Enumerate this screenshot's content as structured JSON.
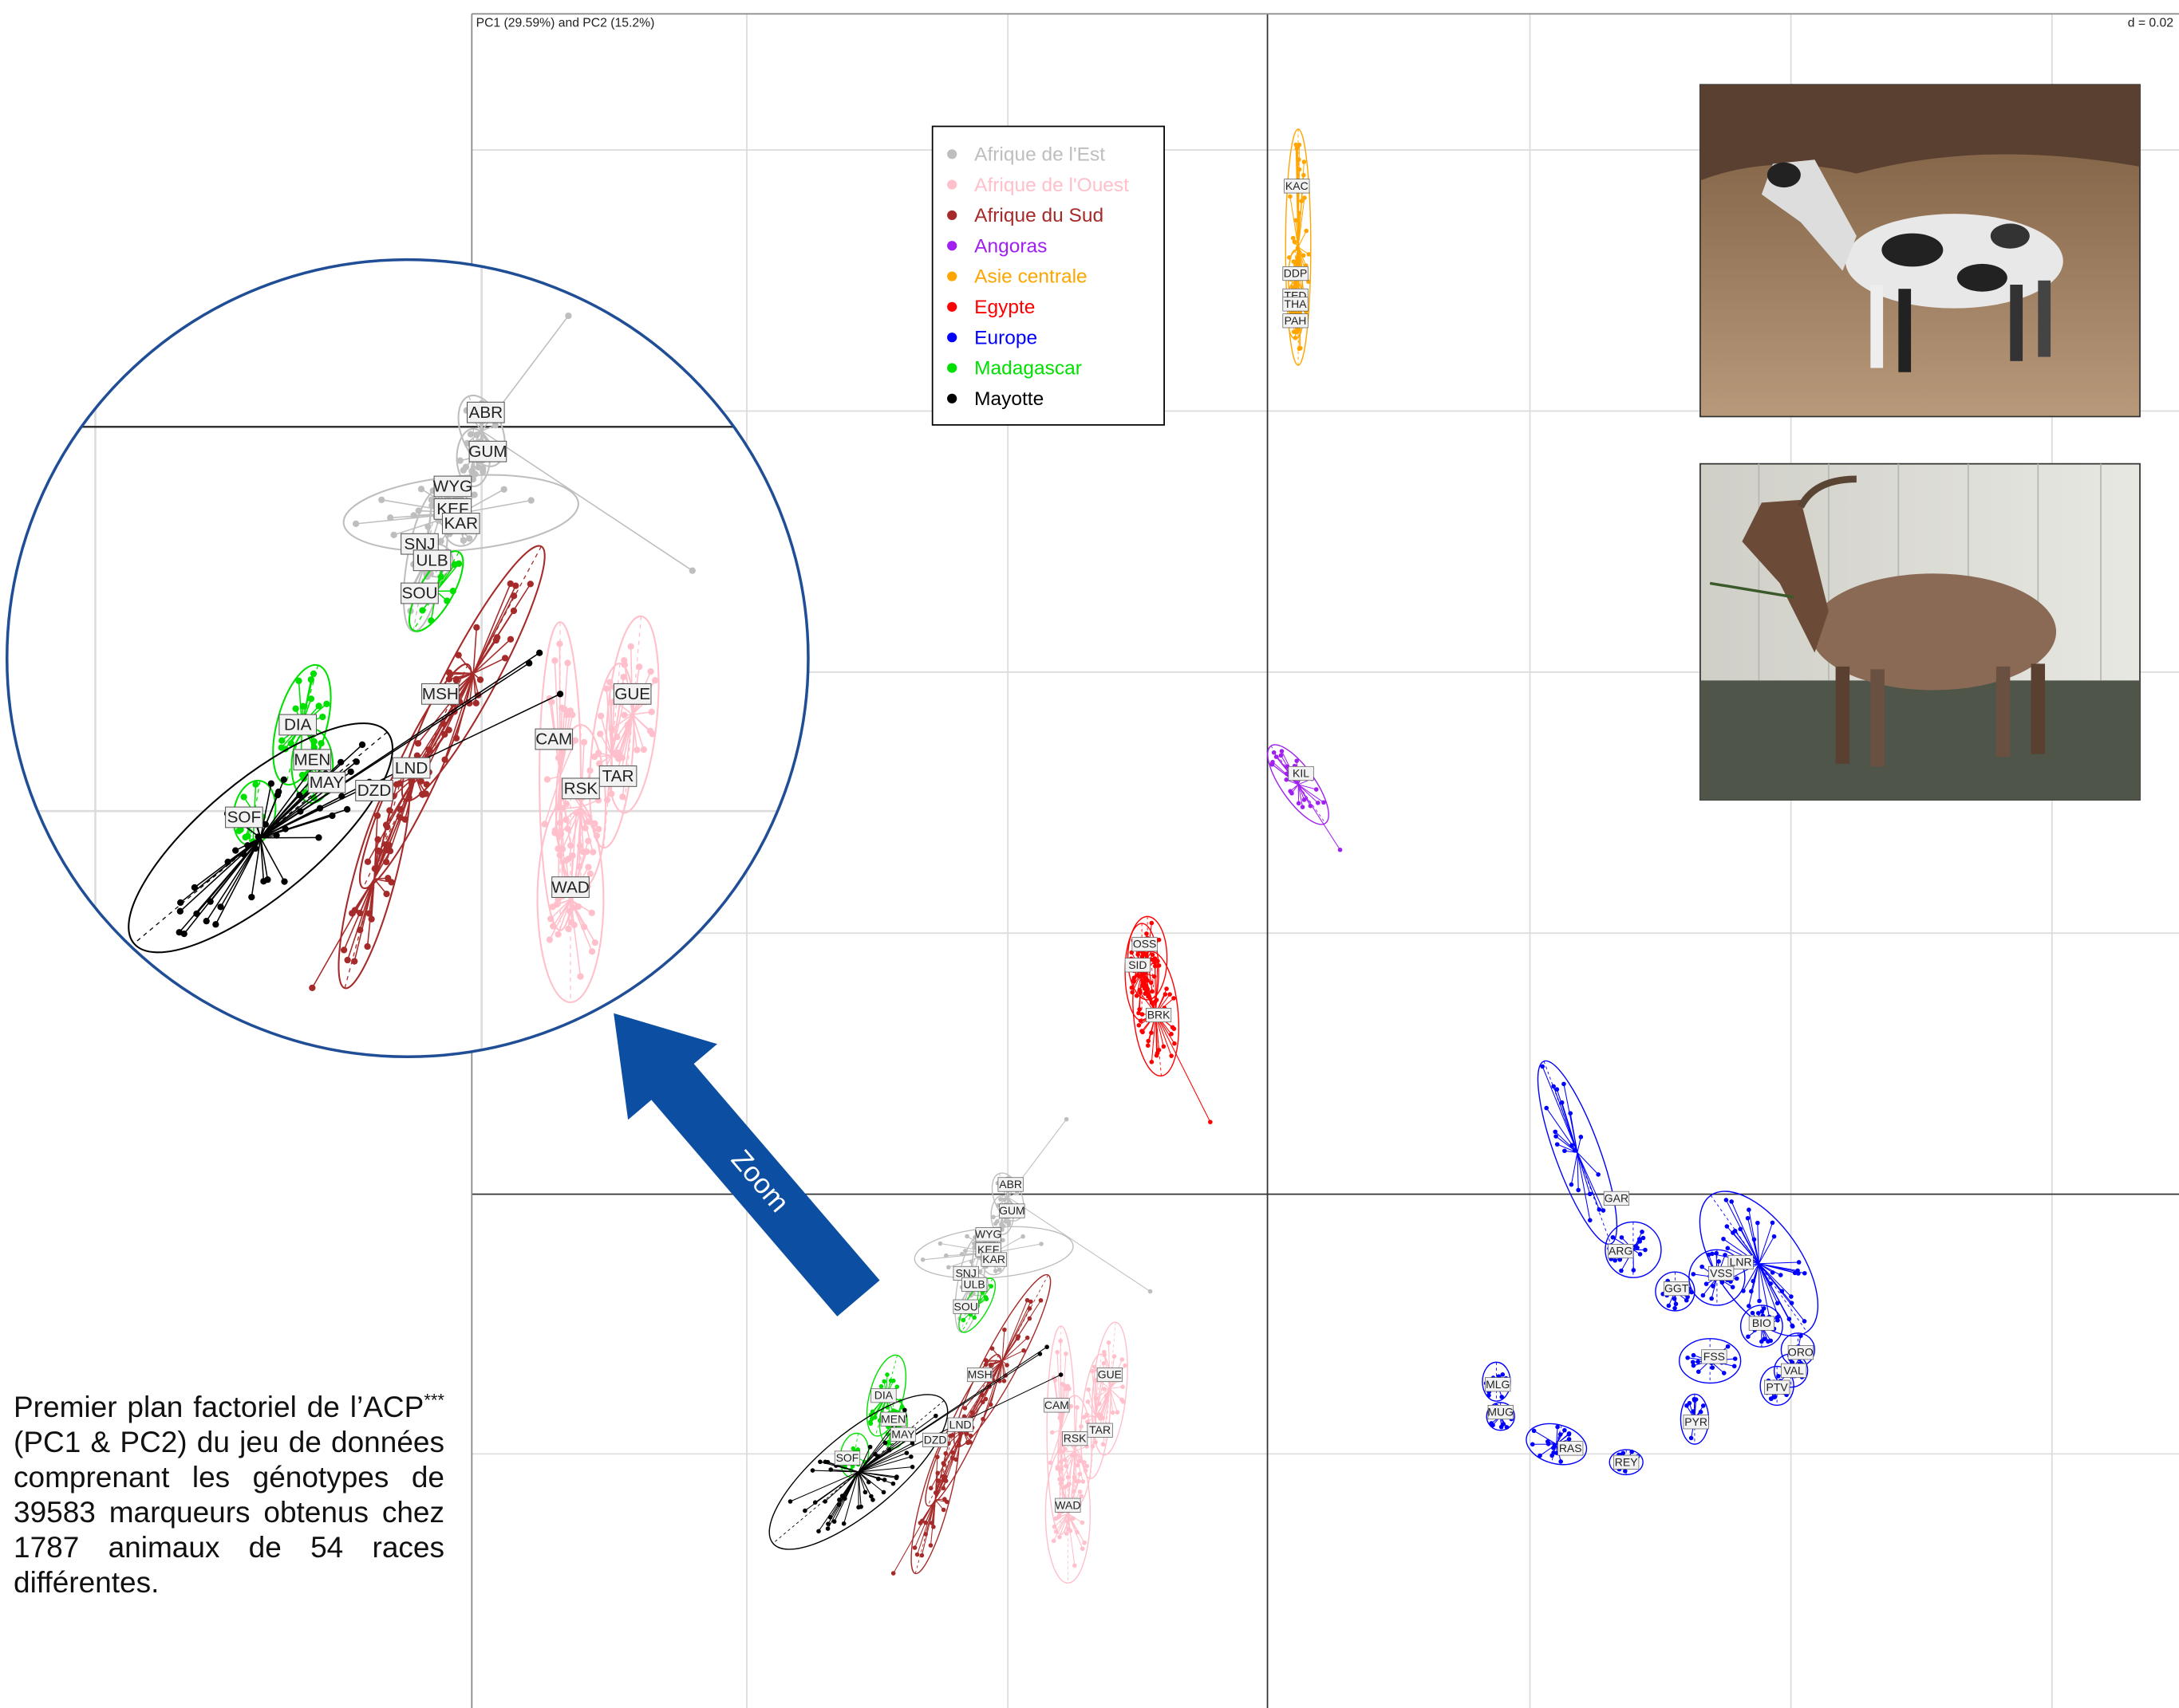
{
  "header": {
    "left": "PC1 (29.59%) and PC2 (15.2%)",
    "right": "d = 0.02"
  },
  "legend": [
    {
      "name": "Afrique de l'Est",
      "color": "#bebebe",
      "breeds": [
        "ABR",
        "GUM",
        "WYG",
        "KEF",
        "KAR",
        "SNJ",
        "ULB"
      ]
    },
    {
      "name": "Afrique de l'Ouest",
      "color": "#ffc0cb",
      "breeds": [
        "GUE",
        "CAM",
        "TAR",
        "RSK",
        "WAD"
      ]
    },
    {
      "name": "Afrique du Sud",
      "color": "#a52a2a",
      "breeds": [
        "MSH",
        "LND",
        "DZD"
      ]
    },
    {
      "name": "Angoras",
      "color": "#a020f0",
      "breeds": [
        "KIL"
      ]
    },
    {
      "name": "Asie centrale",
      "color": "#ffa500",
      "breeds": [
        "KAC",
        "DDP",
        "TED",
        "THA",
        "PAH"
      ]
    },
    {
      "name": "Egypte",
      "color": "#ff0000",
      "breeds": [
        "OSS",
        "SID",
        "BRK"
      ]
    },
    {
      "name": "Europe",
      "color": "#0000ff",
      "breeds": [
        "GAR",
        "ARG",
        "LNR",
        "VSS",
        "GGT",
        "BIO",
        "ORO",
        "FSS",
        "VAL",
        "PTV",
        "MLG",
        "MUG",
        "PYR",
        "RAS",
        "REY"
      ]
    },
    {
      "name": "Madagascar",
      "color": "#00e000",
      "breeds": [
        "SOU",
        "DIA",
        "MEN",
        "SOF"
      ]
    },
    {
      "name": "Mayotte",
      "color": "#000000",
      "breeds": [
        "MAY"
      ]
    }
  ],
  "zoom_label": "Zoom",
  "caption": {
    "before": "Premier plan factoriel de l’ACP",
    "sup": "***",
    "after": " (PC1 & PC2) du jeu de données comprenant les génotypes de 39583 marqueurs obtenus chez 1787 animaux de 54 races différentes."
  }
}
